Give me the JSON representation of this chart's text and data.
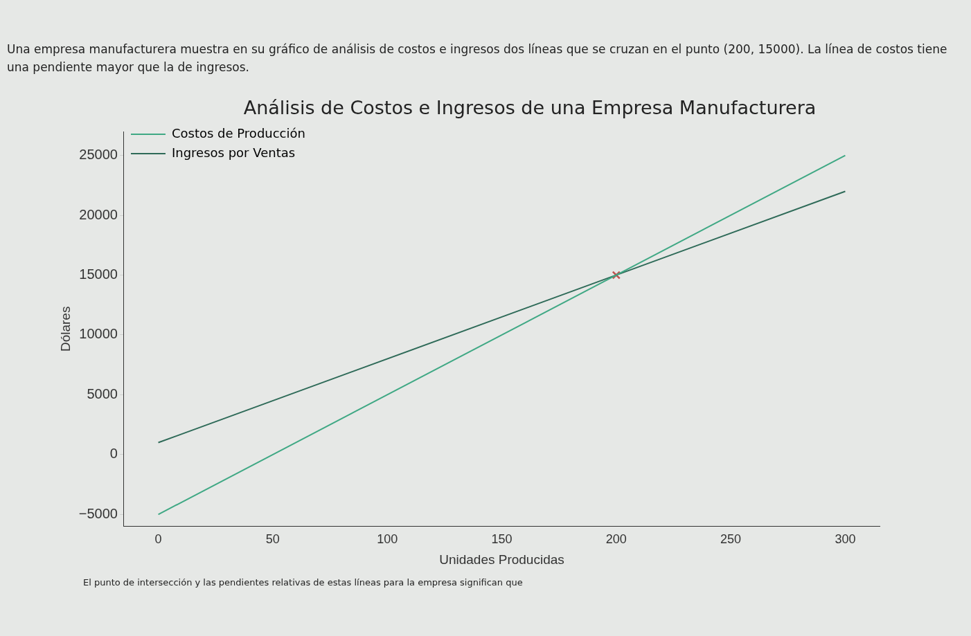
{
  "chart_data": {
    "type": "line",
    "title": "Análisis de Costos e Ingresos de una Empresa Manufacturera",
    "xlabel": "Unidades Producidas",
    "ylabel": "Dólares",
    "annotations": [
      "Una empresa manufacturera muestra en su gráfico de análisis de costos e ingresos dos líneas que se cruzan en el punto (200, 15000). La línea de costos tiene una pendiente mayor que la de ingresos.",
      "El punto de intersección y las pendientes relativas de estas líneas para la empresa significan que"
    ],
    "series": [
      {
        "name": "Costos de Producción",
        "color": "#3fa884",
        "x": [
          0,
          300
        ],
        "values": [
          -5000,
          25000
        ]
      },
      {
        "name": "Ingresos por Ventas",
        "color": "#2e6a58",
        "x": [
          0,
          300
        ],
        "values": [
          1000,
          22000
        ]
      },
      {
        "type": "scatter",
        "marker": "cross",
        "color": "#c0504d",
        "x": [
          200
        ],
        "values": [
          15000
        ]
      }
    ],
    "xlim": [
      -15,
      315
    ],
    "xticks": [
      0,
      50,
      100,
      150,
      200,
      250,
      300
    ],
    "ylim": [
      -6000,
      27000
    ],
    "yticks": [
      -5000,
      0,
      5000,
      10000,
      15000,
      20000,
      25000
    ],
    "legend": "top left",
    "grid": false,
    "marker": "none",
    "line_style": "solid"
  }
}
